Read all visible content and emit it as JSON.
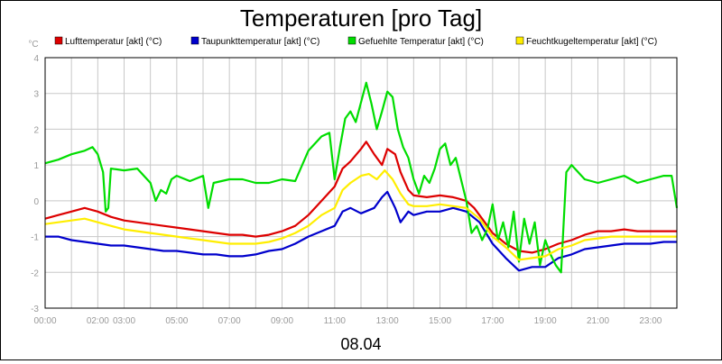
{
  "chart_data": {
    "type": "line",
    "title": "Temperaturen [pro Tag]",
    "xlabel": "08.04",
    "ylabel": "°C",
    "ylim": [
      -3,
      4
    ],
    "yticks": [
      -3,
      -2,
      -1,
      0,
      1,
      2,
      3,
      4
    ],
    "xlim": [
      0,
      24
    ],
    "x_ticks": [
      {
        "x": 0,
        "label": "00:00"
      },
      {
        "x": 2,
        "label": "02:00"
      },
      {
        "x": 3,
        "label": "03:00"
      },
      {
        "x": 5,
        "label": "05:00"
      },
      {
        "x": 7,
        "label": "07:00"
      },
      {
        "x": 9,
        "label": "09:00"
      },
      {
        "x": 11,
        "label": "11:00"
      },
      {
        "x": 13,
        "label": "13:00"
      },
      {
        "x": 15,
        "label": "15:00"
      },
      {
        "x": 17,
        "label": "17:00"
      },
      {
        "x": 19,
        "label": "19:00"
      },
      {
        "x": 21,
        "label": "21:00"
      },
      {
        "x": 23,
        "label": "23:00"
      }
    ],
    "grid": true,
    "legend_position": "top",
    "series": [
      {
        "name": "Lufttemperatur [akt] (°C)",
        "color": "#dd0000",
        "points": [
          [
            0,
            -0.5
          ],
          [
            0.5,
            -0.4
          ],
          [
            1,
            -0.3
          ],
          [
            1.5,
            -0.2
          ],
          [
            2,
            -0.3
          ],
          [
            2.5,
            -0.45
          ],
          [
            3,
            -0.55
          ],
          [
            3.5,
            -0.6
          ],
          [
            4,
            -0.65
          ],
          [
            4.5,
            -0.7
          ],
          [
            5,
            -0.75
          ],
          [
            5.5,
            -0.8
          ],
          [
            6,
            -0.85
          ],
          [
            6.5,
            -0.9
          ],
          [
            7,
            -0.95
          ],
          [
            7.5,
            -0.95
          ],
          [
            8,
            -1.0
          ],
          [
            8.5,
            -0.95
          ],
          [
            9,
            -0.85
          ],
          [
            9.5,
            -0.7
          ],
          [
            10,
            -0.4
          ],
          [
            10.5,
            0.0
          ],
          [
            11,
            0.4
          ],
          [
            11.3,
            0.9
          ],
          [
            11.6,
            1.1
          ],
          [
            12,
            1.45
          ],
          [
            12.2,
            1.65
          ],
          [
            12.5,
            1.3
          ],
          [
            12.8,
            1.0
          ],
          [
            13,
            1.45
          ],
          [
            13.3,
            1.3
          ],
          [
            13.5,
            0.8
          ],
          [
            13.8,
            0.3
          ],
          [
            14,
            0.15
          ],
          [
            14.5,
            0.1
          ],
          [
            15,
            0.15
          ],
          [
            15.5,
            0.1
          ],
          [
            16,
            0.0
          ],
          [
            16.3,
            -0.2
          ],
          [
            16.6,
            -0.5
          ],
          [
            17,
            -0.9
          ],
          [
            17.5,
            -1.2
          ],
          [
            18,
            -1.4
          ],
          [
            18.5,
            -1.45
          ],
          [
            19,
            -1.35
          ],
          [
            19.5,
            -1.2
          ],
          [
            20,
            -1.1
          ],
          [
            20.5,
            -0.95
          ],
          [
            21,
            -0.85
          ],
          [
            21.5,
            -0.85
          ],
          [
            22,
            -0.8
          ],
          [
            22.5,
            -0.85
          ],
          [
            23,
            -0.85
          ],
          [
            23.5,
            -0.85
          ],
          [
            24,
            -0.85
          ]
        ]
      },
      {
        "name": "Taupunkttemperatur [akt] (°C)",
        "color": "#0000cc",
        "points": [
          [
            0,
            -1.0
          ],
          [
            0.5,
            -1.0
          ],
          [
            1,
            -1.1
          ],
          [
            1.5,
            -1.15
          ],
          [
            2,
            -1.2
          ],
          [
            2.5,
            -1.25
          ],
          [
            3,
            -1.25
          ],
          [
            3.5,
            -1.3
          ],
          [
            4,
            -1.35
          ],
          [
            4.5,
            -1.4
          ],
          [
            5,
            -1.4
          ],
          [
            5.5,
            -1.45
          ],
          [
            6,
            -1.5
          ],
          [
            6.5,
            -1.5
          ],
          [
            7,
            -1.55
          ],
          [
            7.5,
            -1.55
          ],
          [
            8,
            -1.5
          ],
          [
            8.5,
            -1.4
          ],
          [
            9,
            -1.35
          ],
          [
            9.5,
            -1.2
          ],
          [
            10,
            -1.0
          ],
          [
            10.5,
            -0.85
          ],
          [
            11,
            -0.7
          ],
          [
            11.3,
            -0.3
          ],
          [
            11.6,
            -0.2
          ],
          [
            12,
            -0.35
          ],
          [
            12.5,
            -0.2
          ],
          [
            12.8,
            0.1
          ],
          [
            13,
            0.25
          ],
          [
            13.3,
            -0.2
          ],
          [
            13.5,
            -0.6
          ],
          [
            13.8,
            -0.3
          ],
          [
            14,
            -0.4
          ],
          [
            14.5,
            -0.3
          ],
          [
            15,
            -0.3
          ],
          [
            15.5,
            -0.2
          ],
          [
            16,
            -0.3
          ],
          [
            16.5,
            -0.6
          ],
          [
            17,
            -1.2
          ],
          [
            17.5,
            -1.6
          ],
          [
            18,
            -1.95
          ],
          [
            18.5,
            -1.85
          ],
          [
            19,
            -1.85
          ],
          [
            19.5,
            -1.6
          ],
          [
            20,
            -1.5
          ],
          [
            20.5,
            -1.35
          ],
          [
            21,
            -1.3
          ],
          [
            21.5,
            -1.25
          ],
          [
            22,
            -1.2
          ],
          [
            22.5,
            -1.2
          ],
          [
            23,
            -1.2
          ],
          [
            23.5,
            -1.15
          ],
          [
            24,
            -1.15
          ]
        ]
      },
      {
        "name": "Gefuehlte Temperatur [akt] (°C)",
        "color": "#00dd00",
        "points": [
          [
            0,
            1.05
          ],
          [
            0.5,
            1.15
          ],
          [
            1,
            1.3
          ],
          [
            1.5,
            1.4
          ],
          [
            1.8,
            1.5
          ],
          [
            2,
            1.3
          ],
          [
            2.2,
            0.8
          ],
          [
            2.3,
            -0.3
          ],
          [
            2.4,
            -0.2
          ],
          [
            2.5,
            0.9
          ],
          [
            3,
            0.85
          ],
          [
            3.5,
            0.9
          ],
          [
            4,
            0.5
          ],
          [
            4.2,
            0.0
          ],
          [
            4.4,
            0.3
          ],
          [
            4.6,
            0.2
          ],
          [
            4.8,
            0.6
          ],
          [
            5,
            0.7
          ],
          [
            5.5,
            0.55
          ],
          [
            6,
            0.7
          ],
          [
            6.2,
            -0.2
          ],
          [
            6.4,
            0.5
          ],
          [
            7,
            0.6
          ],
          [
            7.5,
            0.6
          ],
          [
            8,
            0.5
          ],
          [
            8.5,
            0.5
          ],
          [
            9,
            0.6
          ],
          [
            9.5,
            0.55
          ],
          [
            10,
            1.4
          ],
          [
            10.5,
            1.8
          ],
          [
            10.8,
            1.9
          ],
          [
            11,
            0.6
          ],
          [
            11.2,
            1.5
          ],
          [
            11.4,
            2.3
          ],
          [
            11.6,
            2.5
          ],
          [
            11.8,
            2.2
          ],
          [
            12,
            2.75
          ],
          [
            12.2,
            3.3
          ],
          [
            12.4,
            2.7
          ],
          [
            12.6,
            2.0
          ],
          [
            12.8,
            2.5
          ],
          [
            13,
            3.05
          ],
          [
            13.2,
            2.9
          ],
          [
            13.4,
            2.0
          ],
          [
            13.6,
            1.5
          ],
          [
            13.8,
            1.2
          ],
          [
            14,
            0.6
          ],
          [
            14.2,
            0.2
          ],
          [
            14.4,
            0.7
          ],
          [
            14.6,
            0.5
          ],
          [
            14.8,
            0.9
          ],
          [
            15,
            1.45
          ],
          [
            15.2,
            1.6
          ],
          [
            15.4,
            1.0
          ],
          [
            15.6,
            1.2
          ],
          [
            15.8,
            0.6
          ],
          [
            16,
            0.0
          ],
          [
            16.2,
            -0.9
          ],
          [
            16.4,
            -0.7
          ],
          [
            16.6,
            -1.1
          ],
          [
            16.8,
            -0.8
          ],
          [
            17,
            -0.1
          ],
          [
            17.2,
            -1.1
          ],
          [
            17.4,
            -0.6
          ],
          [
            17.6,
            -1.3
          ],
          [
            17.8,
            -0.3
          ],
          [
            18,
            -1.7
          ],
          [
            18.2,
            -0.5
          ],
          [
            18.4,
            -1.2
          ],
          [
            18.6,
            -0.6
          ],
          [
            18.8,
            -1.8
          ],
          [
            19,
            -1.1
          ],
          [
            19.2,
            -1.5
          ],
          [
            19.4,
            -1.8
          ],
          [
            19.6,
            -2.0
          ],
          [
            19.8,
            0.8
          ],
          [
            20,
            1.0
          ],
          [
            20.5,
            0.6
          ],
          [
            21,
            0.5
          ],
          [
            21.5,
            0.6
          ],
          [
            22,
            0.7
          ],
          [
            22.5,
            0.5
          ],
          [
            23,
            0.6
          ],
          [
            23.5,
            0.7
          ],
          [
            23.8,
            0.7
          ],
          [
            24,
            -0.2
          ]
        ]
      },
      {
        "name": "Feuchtkugeltemperatur [akt] (°C)",
        "color": "#ffee00",
        "points": [
          [
            0,
            -0.65
          ],
          [
            0.5,
            -0.6
          ],
          [
            1,
            -0.55
          ],
          [
            1.5,
            -0.5
          ],
          [
            2,
            -0.6
          ],
          [
            2.5,
            -0.7
          ],
          [
            3,
            -0.8
          ],
          [
            3.5,
            -0.85
          ],
          [
            4,
            -0.9
          ],
          [
            4.5,
            -0.95
          ],
          [
            5,
            -1.0
          ],
          [
            5.5,
            -1.05
          ],
          [
            6,
            -1.1
          ],
          [
            6.5,
            -1.15
          ],
          [
            7,
            -1.2
          ],
          [
            7.5,
            -1.2
          ],
          [
            8,
            -1.2
          ],
          [
            8.5,
            -1.15
          ],
          [
            9,
            -1.05
          ],
          [
            9.5,
            -0.9
          ],
          [
            10,
            -0.7
          ],
          [
            10.5,
            -0.4
          ],
          [
            11,
            -0.2
          ],
          [
            11.3,
            0.3
          ],
          [
            11.6,
            0.5
          ],
          [
            12,
            0.7
          ],
          [
            12.3,
            0.75
          ],
          [
            12.6,
            0.6
          ],
          [
            12.9,
            0.85
          ],
          [
            13.2,
            0.6
          ],
          [
            13.5,
            0.2
          ],
          [
            13.8,
            -0.1
          ],
          [
            14,
            -0.15
          ],
          [
            14.5,
            -0.15
          ],
          [
            15,
            -0.1
          ],
          [
            15.5,
            -0.15
          ],
          [
            16,
            -0.2
          ],
          [
            16.5,
            -0.5
          ],
          [
            17,
            -1.0
          ],
          [
            17.5,
            -1.3
          ],
          [
            18,
            -1.65
          ],
          [
            18.5,
            -1.6
          ],
          [
            19,
            -1.55
          ],
          [
            19.5,
            -1.35
          ],
          [
            20,
            -1.25
          ],
          [
            20.5,
            -1.1
          ],
          [
            21,
            -1.05
          ],
          [
            21.5,
            -1.0
          ],
          [
            22,
            -1.0
          ],
          [
            22.5,
            -1.0
          ],
          [
            23,
            -1.0
          ],
          [
            23.5,
            -1.0
          ],
          [
            24,
            -1.0
          ]
        ]
      }
    ]
  }
}
